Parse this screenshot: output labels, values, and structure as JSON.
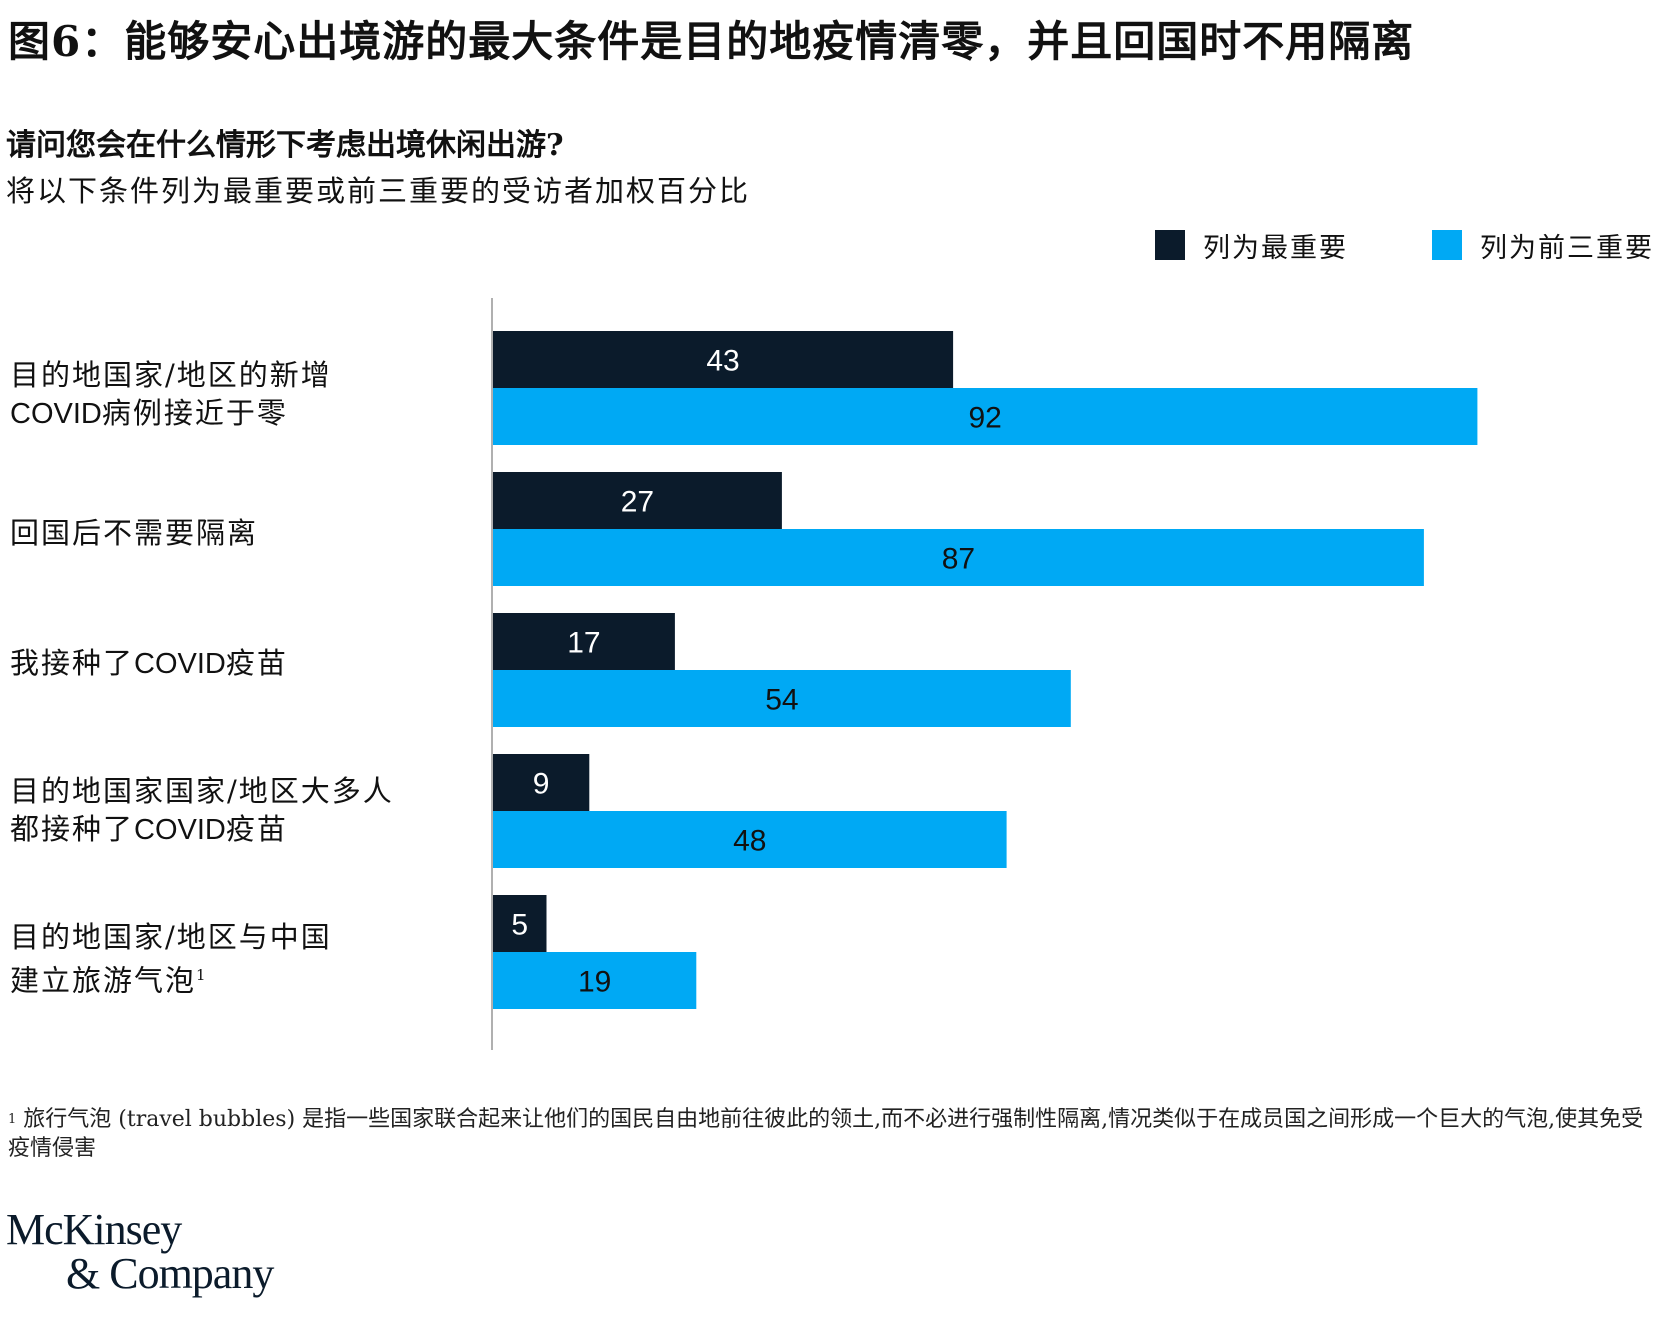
{
  "title": "图6：能够安心出境游的最大条件是目的地疫情清零，并且回国时不用隔离",
  "question": "请问您会在什么情形下考虑出境休闲出游?",
  "subtitle": "将以下条件列为最重要或前三重要的受访者加权百分比",
  "footnote": {
    "mark": "1",
    "text": "旅行气泡 (travel bubbles) 是指一些国家联合起来让他们的国民自由地前往彼此的领土,而不必进行强制性隔离,情况类似于在成员国之间形成一个巨大的气泡,使其免受疫情侵害"
  },
  "logo": {
    "line1": "McKinsey",
    "line2": "& Company"
  },
  "colors": {
    "top1": "#0b1b2b",
    "top3": "#00a9f4",
    "axis": "#b0b0b0"
  },
  "chart_data": {
    "type": "bar",
    "orientation": "horizontal",
    "categories": [
      "目的地国家/地区的新增COVID病例接近于零",
      "回国后不需要隔离",
      "我接种了COVID疫苗",
      "目的地国家国家/地区大多人都接种了COVID疫苗",
      "目的地国家/地区与中国建立旅游气泡"
    ],
    "category_labels": [
      {
        "line1": "目的地国家/地区的新增",
        "line2_latin": "COVID",
        "line2": "病例接近于零"
      },
      {
        "line1": "回国后不需要隔离"
      },
      {
        "line1": "我接种了",
        "line1_latin": "COVID",
        "line1_tail": "疫苗"
      },
      {
        "line1": "目的地国家国家/地区大多人",
        "line2": "都接种了",
        "line2_latin": "COVID",
        "line2_tail": "疫苗"
      },
      {
        "line1": "目的地国家/地区与中国",
        "line2": "建立旅游气泡",
        "line2_sup": "1"
      }
    ],
    "series": [
      {
        "name": "列为最重要",
        "color": "#0b1b2b",
        "values": [
          43,
          27,
          17,
          9,
          5
        ]
      },
      {
        "name": "列为前三重要",
        "color": "#00a9f4",
        "values": [
          92,
          87,
          54,
          48,
          19
        ]
      }
    ],
    "xlim": [
      0,
      100
    ],
    "legend": "top-right",
    "data_labels": true,
    "grid": false
  }
}
